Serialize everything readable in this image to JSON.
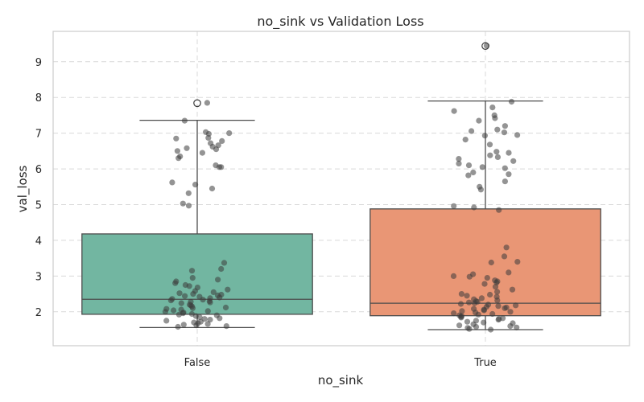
{
  "chart_data": {
    "type": "box",
    "title": "no_sink vs Validation Loss",
    "xlabel": "no_sink",
    "ylabel": "val_loss",
    "categories": [
      "False",
      "True"
    ],
    "ylim": [
      1.05,
      9.85
    ],
    "yticks": [
      2,
      3,
      4,
      5,
      6,
      7,
      8,
      9
    ],
    "grid": true,
    "colors": {
      "False": "#72b6a1",
      "True": "#e99675"
    },
    "boxes": [
      {
        "category": "False",
        "whisker_low": 1.56,
        "q1": 1.93,
        "median": 2.35,
        "q3": 4.18,
        "whisker_high": 7.36,
        "outliers": [
          7.84
        ]
      },
      {
        "category": "True",
        "whisker_low": 1.5,
        "q1": 1.89,
        "median": 2.24,
        "q3": 4.88,
        "whisker_high": 7.9,
        "outliers": [
          9.44
        ]
      }
    ],
    "points": {
      "False": [
        7.85,
        7.35,
        7.03,
        7.0,
        6.98,
        6.87,
        6.85,
        6.78,
        6.72,
        6.66,
        6.62,
        6.58,
        6.55,
        6.5,
        6.45,
        6.35,
        6.3,
        6.1,
        6.05,
        6.05,
        5.62,
        5.56,
        5.45,
        5.32,
        5.03,
        4.97,
        3.37,
        3.2,
        3.15,
        2.95,
        2.9,
        2.85,
        2.8,
        2.75,
        2.72,
        2.68,
        2.62,
        2.58,
        2.55,
        2.52,
        2.5,
        2.48,
        2.46,
        2.44,
        2.42,
        2.4,
        2.38,
        2.36,
        2.34,
        2.32,
        2.3,
        2.28,
        2.26,
        2.24,
        2.2,
        2.18,
        2.15,
        2.12,
        2.1,
        2.08,
        2.06,
        2.04,
        2.02,
        2.0,
        1.98,
        1.96,
        1.94,
        1.92,
        1.9,
        1.88,
        1.85,
        1.82,
        1.8,
        1.78,
        1.75,
        1.72,
        1.7,
        1.68,
        1.66,
        1.64,
        1.62,
        1.6,
        1.58
      ],
      "True": [
        9.45,
        7.88,
        7.72,
        7.62,
        7.5,
        7.42,
        7.35,
        7.2,
        7.1,
        7.06,
        7.02,
        6.95,
        6.93,
        6.82,
        6.68,
        6.48,
        6.45,
        6.38,
        6.33,
        6.28,
        6.22,
        6.15,
        6.1,
        6.05,
        6.02,
        5.9,
        5.85,
        5.82,
        5.65,
        5.5,
        5.42,
        4.96,
        4.92,
        4.85,
        3.8,
        3.55,
        3.4,
        3.38,
        3.1,
        3.05,
        3.0,
        2.98,
        2.95,
        2.88,
        2.85,
        2.82,
        2.78,
        2.7,
        2.62,
        2.56,
        2.5,
        2.48,
        2.45,
        2.42,
        2.38,
        2.35,
        2.32,
        2.3,
        2.28,
        2.26,
        2.24,
        2.22,
        2.2,
        2.18,
        2.16,
        2.14,
        2.12,
        2.1,
        2.08,
        2.06,
        2.04,
        2.02,
        2.0,
        1.98,
        1.96,
        1.94,
        1.92,
        1.9,
        1.88,
        1.86,
        1.84,
        1.82,
        1.8,
        1.78,
        1.75,
        1.72,
        1.7,
        1.68,
        1.65,
        1.62,
        1.6,
        1.58,
        1.56,
        1.55,
        1.52,
        1.5
      ]
    }
  }
}
